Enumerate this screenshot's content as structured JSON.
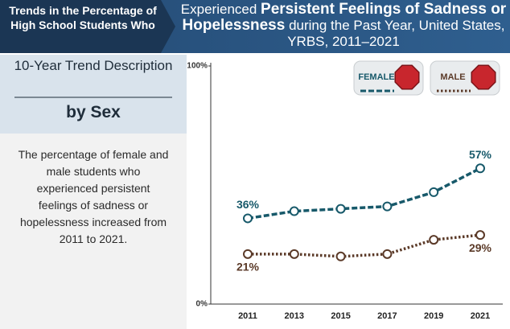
{
  "header": "Trends in the Percentage of High School Students Who",
  "sidebar": {
    "heading": "10-Year Trend Description",
    "subheading": "by Sex",
    "description": "The percentage of female and male students who experienced persistent feelings of sadness or hopelessness increased from 2011 to 2021."
  },
  "chart_data": {
    "type": "line",
    "title_prefix": "Experienced",
    "title_main": "Persistent Feelings of Sadness or Hopelessness",
    "title_suffix": "during the Past Year, United States, YRBS, 2011–2021",
    "categories": [
      "2011",
      "2013",
      "2015",
      "2017",
      "2019",
      "2021"
    ],
    "ylim": [
      0,
      100
    ],
    "yticks": [
      {
        "value": 0,
        "label": "0%"
      },
      {
        "value": 100,
        "label": "100%"
      }
    ],
    "series": [
      {
        "name": "FEMALE",
        "color": "#17596a",
        "values": [
          36,
          39,
          40,
          41,
          47,
          57
        ],
        "value_labels": [
          "36%",
          null,
          null,
          null,
          null,
          "57%"
        ]
      },
      {
        "name": "MALE",
        "color": "#5b3a28",
        "values": [
          21,
          21,
          20,
          21,
          27,
          29
        ],
        "value_labels": [
          "21%",
          null,
          null,
          null,
          null,
          "29%"
        ]
      }
    ]
  }
}
